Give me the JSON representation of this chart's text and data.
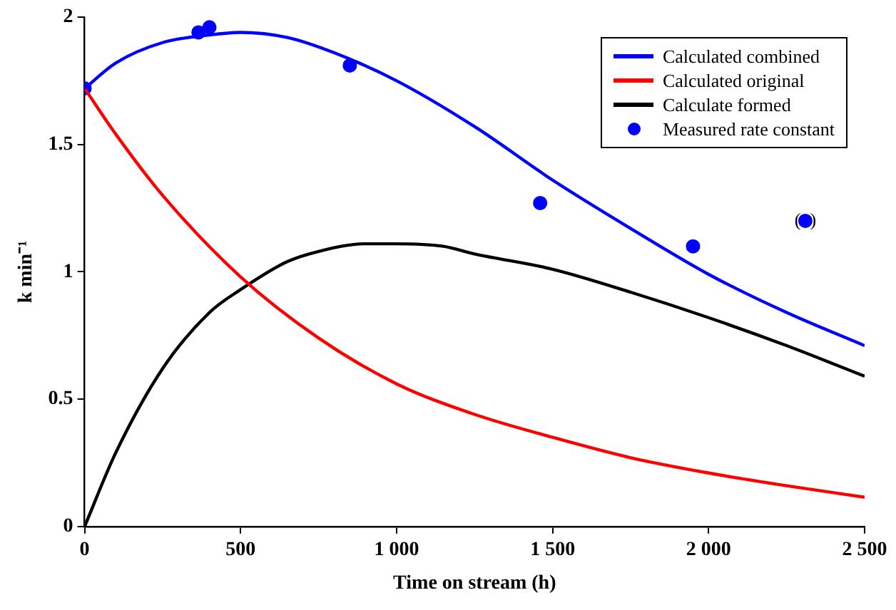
{
  "chart_data": {
    "type": "line",
    "xlabel": "Time on stream (h)",
    "ylabel": "k min⁻¹",
    "xlim": [
      0,
      2500
    ],
    "xticks": [
      0,
      500,
      {
        "value": 1000,
        "label": "1 000"
      },
      {
        "value": 1500,
        "label": "1 500"
      },
      {
        "value": 2000,
        "label": "2 000"
      },
      {
        "value": 2500,
        "label": "2 500"
      }
    ],
    "ylim": [
      0,
      2
    ],
    "yticks": [
      0,
      0.5,
      1,
      1.5,
      2
    ],
    "grid": false,
    "legend": "top right",
    "series": [
      {
        "name": "Calculated combined",
        "color": "#0000ff",
        "marker": "none",
        "x": [
          0,
          100,
          250,
          400,
          500,
          650,
          800,
          1000,
          1250,
          1500,
          1750,
          2000,
          2250,
          2500
        ],
        "values": [
          1.72,
          1.82,
          1.9,
          1.93,
          1.94,
          1.92,
          1.86,
          1.75,
          1.57,
          1.36,
          1.17,
          0.99,
          0.84,
          0.71
        ]
      },
      {
        "name": "Calculated original",
        "color": "#ff0000",
        "marker": "none",
        "x": [
          0,
          100,
          250,
          500,
          750,
          1000,
          1250,
          1500,
          1750,
          2000,
          2250,
          2500
        ],
        "values": [
          1.72,
          1.54,
          1.3,
          0.98,
          0.74,
          0.56,
          0.44,
          0.35,
          0.27,
          0.21,
          0.16,
          0.115
        ]
      },
      {
        "name": "Calculate formed",
        "color": "#000000",
        "marker": "none",
        "x": [
          0,
          100,
          250,
          400,
          500,
          650,
          750,
          900,
          1000,
          1150,
          1250,
          1500,
          1750,
          2000,
          2250,
          2500
        ],
        "values": [
          0,
          0.29,
          0.62,
          0.84,
          0.93,
          1.04,
          1.08,
          1.11,
          1.11,
          1.1,
          1.07,
          1.01,
          0.92,
          0.82,
          0.71,
          0.59
        ]
      },
      {
        "name": "Measured rate constant",
        "color": "#0000ff",
        "type": "scatter",
        "marker": "circle",
        "x": [
          0,
          365,
          400,
          850,
          1460,
          1950,
          2310
        ],
        "values": [
          1.72,
          1.94,
          1.96,
          1.81,
          1.27,
          1.1,
          1.2
        ]
      }
    ],
    "annotations": [
      {
        "text": "(  )",
        "x": 2310,
        "y": 1.2
      }
    ]
  }
}
